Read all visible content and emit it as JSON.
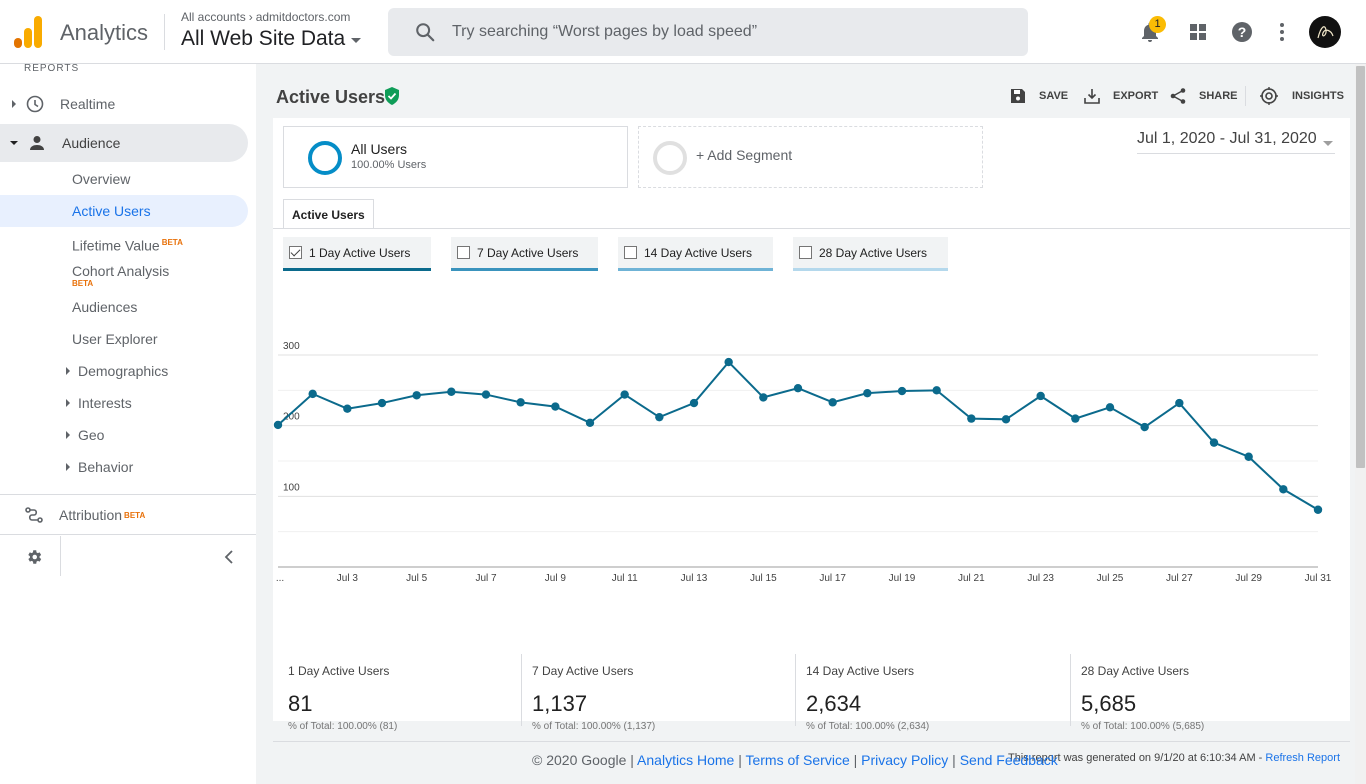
{
  "header": {
    "app_name": "Analytics",
    "crumb_root": "All accounts",
    "crumb_account": "admitdoctors.com",
    "view_name": "All Web Site Data",
    "search_placeholder": "Try searching “Worst pages by load speed”",
    "notification_count": "1"
  },
  "sidebar": {
    "section_label": "REPORTS",
    "realtime": "Realtime",
    "audience": "Audience",
    "items": {
      "overview": "Overview",
      "active_users": "Active Users",
      "lifetime_value": "Lifetime Value",
      "cohort_analysis": "Cohort Analysis",
      "audiences": "Audiences",
      "user_explorer": "User Explorer",
      "demographics": "Demographics",
      "interests": "Interests",
      "geo": "Geo",
      "behavior": "Behavior"
    },
    "attribution": "Attribution",
    "beta_label": "BETA"
  },
  "page": {
    "title": "Active Users",
    "actions": {
      "save": "SAVE",
      "export": "EXPORT",
      "share": "SHARE",
      "insights": "INSIGHTS"
    },
    "segments": {
      "all_users": "All Users",
      "all_users_pct": "100.00% Users",
      "add_segment": "+ Add Segment"
    },
    "date_range": "Jul 1, 2020 - Jul 31, 2020",
    "tab": "Active Users",
    "metric_toggles": [
      {
        "label": "1 Day Active Users",
        "checked": true,
        "color": "#0b6a8c"
      },
      {
        "label": "7 Day Active Users",
        "checked": false,
        "color": "#3a93bd"
      },
      {
        "label": "14 Day Active Users",
        "checked": false,
        "color": "#6fb3d6"
      },
      {
        "label": "28 Day Active Users",
        "checked": false,
        "color": "#b4d8ec"
      }
    ],
    "summary": [
      {
        "label": "1 Day Active Users",
        "value": "81",
        "sub": "% of Total: 100.00% (81)"
      },
      {
        "label": "7 Day Active Users",
        "value": "1,137",
        "sub": "% of Total: 100.00% (1,137)"
      },
      {
        "label": "14 Day Active Users",
        "value": "2,634",
        "sub": "% of Total: 100.00% (2,634)"
      },
      {
        "label": "28 Day Active Users",
        "value": "5,685",
        "sub": "% of Total: 100.00% (5,685)"
      }
    ],
    "generated_text": "This report was generated on 9/1/20 at 6:10:34 AM - ",
    "refresh_link": "Refresh Report"
  },
  "footer": {
    "copyright": "© 2020 Google",
    "sep": " | ",
    "links": [
      "Analytics Home",
      "Terms of Service",
      "Privacy Policy",
      "Send Feedback"
    ]
  },
  "colors": {
    "accent": "#1a73e8",
    "series": "#0b6a8c",
    "brand_orange": "#f9ab00"
  },
  "chart_data": {
    "type": "line",
    "title": "",
    "xlabel": "",
    "ylabel": "",
    "ylim": [
      0,
      300
    ],
    "y_ticks": [
      "300",
      "200",
      "100"
    ],
    "x_first_tick": "...",
    "x_ticks": [
      "Jul 3",
      "Jul 5",
      "Jul 7",
      "Jul 9",
      "Jul 11",
      "Jul 13",
      "Jul 15",
      "Jul 17",
      "Jul 19",
      "Jul 21",
      "Jul 23",
      "Jul 25",
      "Jul 27",
      "Jul 29",
      "Jul 31"
    ],
    "x": [
      "Jul 1",
      "Jul 2",
      "Jul 3",
      "Jul 4",
      "Jul 5",
      "Jul 6",
      "Jul 7",
      "Jul 8",
      "Jul 9",
      "Jul 10",
      "Jul 11",
      "Jul 12",
      "Jul 13",
      "Jul 14",
      "Jul 15",
      "Jul 16",
      "Jul 17",
      "Jul 18",
      "Jul 19",
      "Jul 20",
      "Jul 21",
      "Jul 22",
      "Jul 23",
      "Jul 24",
      "Jul 25",
      "Jul 26",
      "Jul 27",
      "Jul 28",
      "Jul 29",
      "Jul 30",
      "Jul 31"
    ],
    "series": [
      {
        "name": "1 Day Active Users",
        "values": [
          201,
          245,
          224,
          232,
          243,
          248,
          244,
          233,
          227,
          204,
          244,
          212,
          232,
          290,
          240,
          253,
          233,
          246,
          249,
          250,
          210,
          209,
          242,
          210,
          226,
          198,
          232,
          176,
          156,
          110,
          81
        ]
      }
    ],
    "grid": true
  }
}
